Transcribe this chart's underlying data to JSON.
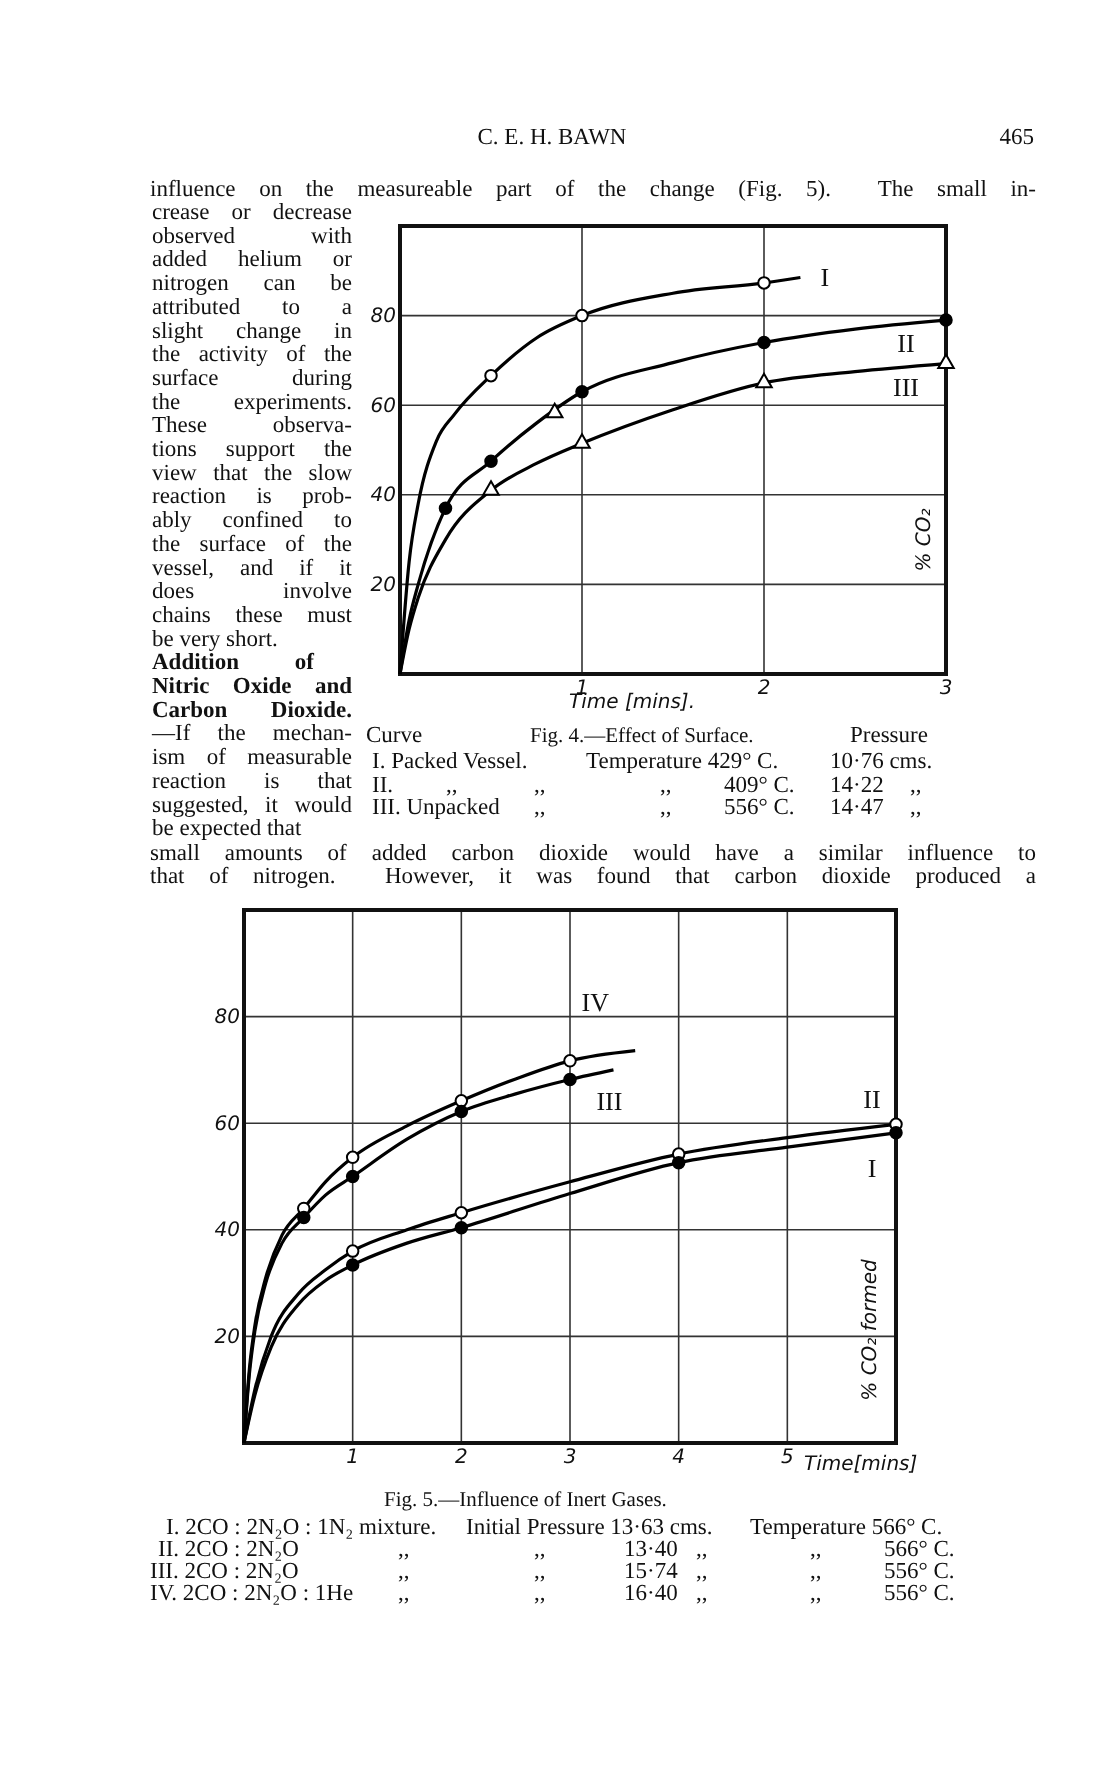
{
  "chart_data": [
    {
      "type": "line",
      "title": "Fig. 4.—Effect of Surface.",
      "xlabel": "Time [mins].",
      "ylabel": "% CO₂",
      "xlim": [
        0,
        3
      ],
      "ylim": [
        0,
        100
      ],
      "xticks": [
        1,
        2,
        3
      ],
      "yticks": [
        20,
        40,
        60,
        80
      ],
      "grid": true,
      "series": [
        {
          "name": "I",
          "type": "line",
          "marker": "none",
          "color": "#000000",
          "x": [
            0,
            0.05,
            0.1,
            0.2,
            0.3,
            0.5,
            0.75,
            1,
            1.5,
            2,
            2.2
          ],
          "values": [
            0,
            25,
            38,
            52,
            58,
            66.6,
            75,
            80,
            85,
            87.3,
            88.5
          ]
        },
        {
          "name": "II",
          "type": "line",
          "marker": "none",
          "color": "#000000",
          "x": [
            0,
            0.05,
            0.1,
            0.25,
            0.5,
            0.75,
            1,
            1.5,
            2,
            2.5,
            3
          ],
          "values": [
            0,
            12,
            20,
            37,
            47.5,
            56,
            63,
            69.5,
            74,
            77,
            79
          ]
        },
        {
          "name": "III",
          "type": "line",
          "marker": "none",
          "color": "#000000",
          "x": [
            0,
            0.05,
            0.1,
            0.25,
            0.5,
            0.75,
            1,
            1.5,
            2,
            2.5,
            3
          ],
          "values": [
            0,
            10,
            17,
            30,
            41,
            47,
            51.5,
            59,
            65,
            67.5,
            69.3
          ]
        },
        {
          "type": "scatter",
          "marker": "circle",
          "color": "#ffffff",
          "x": [
            0.5,
            1,
            2
          ],
          "values": [
            66.6,
            80,
            87.3
          ]
        },
        {
          "type": "scatter",
          "marker": "circle",
          "color": "#000000",
          "x": [
            0.25,
            0.5,
            1,
            2,
            3
          ],
          "values": [
            37,
            47.5,
            63,
            74,
            79
          ]
        },
        {
          "type": "scatter",
          "marker": "triangle",
          "color": "#ffffff",
          "x": [
            0.85
          ],
          "values": [
            58.3
          ]
        },
        {
          "type": "scatter",
          "marker": "triangle",
          "color": "#ffffff",
          "x": [
            0.5,
            1,
            2,
            3
          ],
          "values": [
            41,
            51.5,
            65,
            69.3
          ]
        }
      ],
      "annotations": [
        "C. E. H. BAWN",
        "465",
        "influence on the measureable part of the change (Fig. 5).  The small in-",
        "crease or decrease",
        "observed with",
        "added helium or",
        "nitrogen can be",
        "attributed to a",
        "slight change in",
        "the activity of the",
        "surface during",
        "the experiments.",
        "These observa-",
        "tions support the",
        "view that the slow",
        "reaction is prob-",
        "ably confined to",
        "the surface of the",
        "vessel, and if it",
        "does involve",
        "chains these must",
        "be very short.",
        "Addition of",
        "Nitric Oxide and",
        "Carbon Dioxide.",
        "—If the mechan-",
        "ism of measurable",
        "reaction is that",
        "suggested, it would",
        "be expected that",
        "Curve",
        "Pressure",
        "I. Packed Vessel.",
        "Temperature 429° C.",
        "10·76 cms.",
        "II.",
        ",,",
        ",,",
        ",,",
        "409° C.",
        "14·22",
        ",,",
        "III. Unpacked",
        ",,",
        ",,",
        "556° C.",
        "14·47",
        ",,"
      ]
    },
    {
      "type": "line",
      "title": "Fig. 5.—Influence of Inert Gases.",
      "xlabel": "Time[mins]",
      "ylabel": "% CO₂ formed",
      "xlim": [
        0,
        6
      ],
      "ylim": [
        0,
        100
      ],
      "xticks": [
        1,
        2,
        3,
        4,
        5
      ],
      "yticks": [
        20,
        40,
        60,
        80
      ],
      "grid": true,
      "series": [
        {
          "name": "IV",
          "type": "line",
          "marker": "none",
          "color": "#000000",
          "x": [
            0,
            0.05,
            0.1,
            0.2,
            0.35,
            0.55,
            0.75,
            1,
            1.5,
            2,
            2.5,
            3,
            3.6
          ],
          "values": [
            0,
            14,
            22,
            31,
            39,
            44,
            49,
            53.6,
            59.5,
            64.2,
            68.3,
            71.7,
            73.6
          ]
        },
        {
          "name": "III",
          "type": "line",
          "marker": "none",
          "color": "#000000",
          "x": [
            0,
            0.05,
            0.1,
            0.2,
            0.35,
            0.55,
            0.75,
            1,
            1.5,
            2,
            2.5,
            3,
            3.4
          ],
          "values": [
            0,
            13,
            21,
            30,
            37.5,
            42.3,
            46.5,
            50,
            57,
            62.2,
            65.5,
            68.2,
            70
          ]
        },
        {
          "name": "II",
          "type": "line",
          "marker": "none",
          "color": "#000000",
          "x": [
            0,
            0.1,
            0.25,
            0.5,
            0.75,
            1,
            1.5,
            2,
            3,
            4,
            5,
            6
          ],
          "values": [
            0,
            10,
            20,
            28,
            32.5,
            36,
            40,
            43.2,
            49,
            54.2,
            57.3,
            59.8
          ]
        },
        {
          "name": "I",
          "type": "line",
          "marker": "none",
          "color": "#000000",
          "x": [
            0,
            0.1,
            0.25,
            0.5,
            0.75,
            1,
            1.5,
            2,
            3,
            4,
            5,
            6
          ],
          "values": [
            0,
            9,
            18,
            26,
            30.5,
            33.4,
            37.5,
            40.4,
            46.8,
            52.6,
            55.5,
            58.2
          ]
        },
        {
          "type": "scatter",
          "marker": "circle",
          "color": "#ffffff",
          "x": [
            0.55,
            1,
            2,
            3
          ],
          "values": [
            44,
            53.6,
            64.2,
            71.7
          ]
        },
        {
          "type": "scatter",
          "marker": "circle",
          "color": "#000000",
          "x": [
            0.55,
            1,
            2,
            3
          ],
          "values": [
            42.3,
            50,
            62.2,
            68.2
          ]
        },
        {
          "type": "scatter",
          "marker": "circle",
          "color": "#ffffff",
          "x": [
            1,
            2,
            4,
            6
          ],
          "values": [
            36,
            43.2,
            54.2,
            59.8
          ]
        },
        {
          "type": "scatter",
          "marker": "circle",
          "color": "#000000",
          "x": [
            1,
            2,
            4,
            6
          ],
          "values": [
            33.4,
            40.4,
            52.6,
            58.2
          ]
        }
      ],
      "annotations": [
        "small amounts of added carbon dioxide would have a similar influence to",
        "that of nitrogen.  However, it was found that carbon dioxide produced a",
        "I. 2CO : 2N₂O : 1N₂ mixture.",
        "Initial Pressure 13·63 cms.",
        "Temperature 566° C.",
        "II. 2CO : 2N₂O",
        ",,",
        ",,",
        "13·40",
        ",,",
        ",,",
        "566° C.",
        "III. 2CO : 2N₂O",
        ",,",
        ",,",
        "15·74",
        ",,",
        ",,",
        "556° C.",
        "IV. 2CO : 2N₂O : 1He",
        ",,",
        ",,",
        "16·40",
        ",,",
        ",,",
        "556° C."
      ]
    }
  ]
}
